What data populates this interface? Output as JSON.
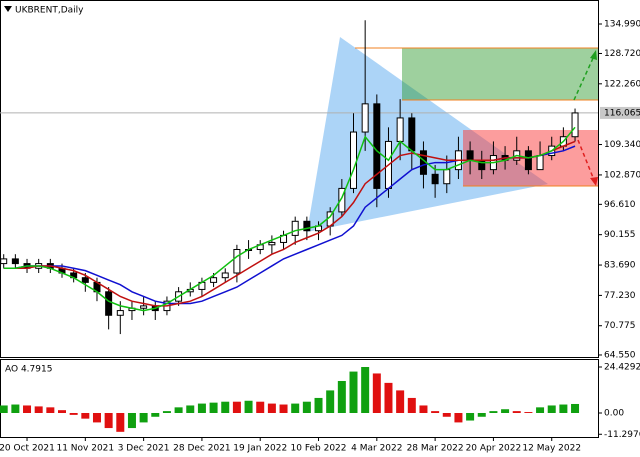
{
  "chart_data": [
    {
      "type": "candlestick",
      "title": "UKBRENT,Daily",
      "categories": [
        null,
        null,
        "20 Oct 2021",
        null,
        null,
        null,
        null,
        "11 Nov 2021",
        null,
        null,
        null,
        null,
        "3 Dec 2021",
        null,
        null,
        null,
        null,
        "28 Dec 2021",
        null,
        null,
        null,
        null,
        "19 Jan 2022",
        null,
        null,
        null,
        null,
        "10 Feb 2022",
        null,
        null,
        null,
        null,
        "4 Mar 2022",
        null,
        null,
        null,
        null,
        "28 Mar 2022",
        null,
        null,
        null,
        null,
        "20 Apr 2022",
        null,
        null,
        null,
        null,
        "12 May 2022",
        null,
        null
      ],
      "open": [
        84,
        85,
        84,
        83,
        84,
        83,
        82,
        81,
        80,
        78,
        73,
        74,
        74.5,
        75,
        74,
        76,
        78,
        78.5,
        80,
        81,
        82,
        87,
        87,
        88,
        88.5,
        90,
        93,
        91,
        92,
        95,
        100,
        112,
        118,
        100,
        110,
        115,
        108,
        103,
        101,
        104,
        108,
        106,
        104,
        107,
        106,
        108,
        104,
        107,
        109,
        111
      ],
      "high": [
        86,
        86,
        85,
        85,
        85,
        84,
        83,
        82,
        81,
        79,
        76,
        76,
        77,
        76,
        77,
        79,
        80,
        81,
        82,
        83,
        88,
        89,
        89,
        90,
        91,
        94,
        94,
        93,
        96,
        102,
        116,
        135.8,
        120,
        113,
        119,
        116,
        110,
        105,
        107,
        111,
        110,
        108,
        110,
        109,
        111,
        109,
        110,
        111,
        113,
        117
      ],
      "low": [
        83,
        83,
        82,
        82,
        82,
        81,
        80,
        78,
        76,
        70,
        69,
        72,
        73,
        72,
        73,
        75,
        77,
        77,
        79,
        80,
        80,
        85,
        86,
        86,
        87,
        88,
        89,
        89,
        90,
        94,
        99,
        108,
        96,
        98,
        106,
        104,
        100,
        98,
        99,
        102,
        103,
        102,
        103,
        104,
        105,
        103,
        104,
        106,
        108,
        110
      ],
      "close": [
        85,
        84,
        83,
        84,
        83,
        82,
        81,
        80,
        78,
        73,
        74,
        74.5,
        75,
        74,
        76,
        78,
        78.5,
        80,
        81,
        82,
        87,
        87,
        88,
        88.5,
        90,
        93,
        91,
        92,
        95,
        100,
        112,
        118,
        100,
        110,
        115,
        108,
        103,
        101,
        104,
        108,
        106,
        104,
        107,
        106,
        108,
        104,
        107,
        109,
        111,
        116.065
      ],
      "series": [
        {
          "color": "#1010d0",
          "values": [
            83,
            83,
            83.5,
            83.5,
            83.5,
            83.5,
            83,
            82.5,
            81.5,
            80.5,
            79.5,
            78,
            77,
            76,
            75.5,
            75.5,
            75.5,
            76,
            77,
            78,
            79,
            80.5,
            82,
            83.5,
            85,
            86,
            87,
            88,
            89,
            90,
            92,
            96,
            98,
            100,
            102,
            104,
            105,
            105.5,
            105.5,
            106,
            106,
            106,
            106,
            106.5,
            106.5,
            106.5,
            107,
            107.5,
            108,
            109
          ]
        },
        {
          "color": "#c01010",
          "values": [
            83,
            83,
            83,
            83.5,
            83.5,
            83,
            82.5,
            81.5,
            80,
            78.5,
            77,
            76,
            75.5,
            75,
            75,
            75.5,
            76,
            77,
            78.5,
            80,
            81.5,
            83,
            84.5,
            86,
            87,
            88.5,
            89.5,
            90.5,
            92,
            94,
            97,
            101,
            103,
            105,
            107,
            107.5,
            107,
            106.5,
            106,
            106,
            106,
            106,
            106,
            106.5,
            106.5,
            106.5,
            107,
            108,
            109,
            110
          ]
        },
        {
          "color": "#10c010",
          "values": [
            83,
            83,
            83.5,
            83.5,
            83,
            82,
            81,
            79.5,
            78,
            76,
            75,
            74.5,
            74,
            74.5,
            75.5,
            77,
            78.5,
            80,
            81.5,
            83.5,
            85.5,
            87,
            88,
            89,
            90,
            91,
            91.5,
            92,
            94,
            98,
            104,
            111,
            108,
            106,
            110,
            108,
            106,
            104,
            104,
            105,
            106,
            105.5,
            105.5,
            106,
            107,
            106.5,
            107,
            108,
            110,
            113
          ]
        }
      ],
      "last_price": 116.065,
      "ylim": [
        64.12,
        140.1
      ],
      "yticks": [
        {
          "value": 134.99,
          "label": "134.990"
        },
        {
          "value": 128.72,
          "label": "128.720"
        },
        {
          "value": 122.26,
          "label": "122.260"
        },
        {
          "value": 109.34,
          "label": "109.340"
        },
        {
          "value": 102.87,
          "label": "102.870"
        },
        {
          "value": 96.61,
          "label": "96.610"
        },
        90.155,
        {
          "value": 83.69,
          "label": "83.690"
        },
        {
          "value": 77.23,
          "label": "77.230"
        },
        {
          "value": 70.775,
          "label": "70.775"
        },
        {
          "value": 64.55,
          "label": "64.550"
        }
      ]
    },
    {
      "type": "bar",
      "title": "AO 4.7915",
      "values": [
        4,
        4.5,
        4,
        3.5,
        3,
        1.5,
        -1,
        -3,
        -5,
        -8,
        -10,
        -8,
        -5,
        -2,
        1,
        3,
        4,
        5,
        5.5,
        6,
        6,
        6.5,
        6,
        5,
        4.5,
        5,
        6,
        8,
        12,
        17,
        22,
        24.4292,
        21,
        16,
        12,
        8,
        4,
        1,
        -2,
        -5,
        -4,
        -2,
        1,
        2,
        1,
        0.5,
        3,
        4,
        4.5,
        4.7915
      ],
      "up_color": "#10a010",
      "down_color": "#e01010",
      "ylim": [
        -12.75,
        28.15
      ],
      "yticks": [
        24.4292,
        {
          "value": 0,
          "label": "0.00"
        },
        -11.2976
      ]
    }
  ]
}
